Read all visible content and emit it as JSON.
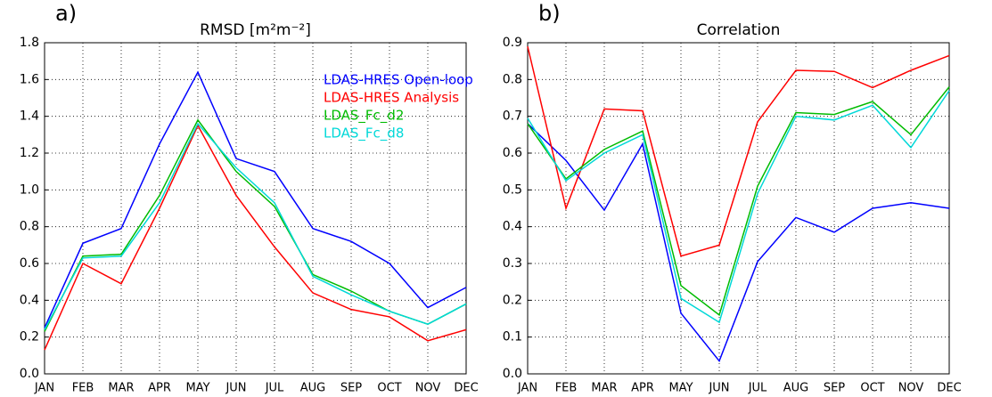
{
  "chart_data": [
    {
      "type": "line",
      "label": "a)",
      "title": "RMSD [m²m⁻²]",
      "categories": [
        "JAN",
        "FEB",
        "MAR",
        "APR",
        "MAY",
        "JUN",
        "JUL",
        "AUG",
        "SEP",
        "OCT",
        "NOV",
        "DEC"
      ],
      "ylim": [
        0,
        1.8
      ],
      "yticks": [
        {
          "value": 0,
          "label": "0.0"
        },
        0.2,
        0.4,
        0.6,
        0.8,
        {
          "value": 1,
          "label": "1.0"
        },
        1.2,
        1.4,
        1.6,
        1.8
      ],
      "grid": true,
      "legend": "upper right",
      "series": [
        {
          "name": "LDAS-HRES Open-loop",
          "color": "#0000ff",
          "values": [
            0.25,
            0.71,
            0.79,
            1.25,
            1.64,
            1.17,
            1.1,
            0.79,
            0.72,
            0.6,
            0.36,
            0.47
          ]
        },
        {
          "name": "LDAS-HRES Analysis",
          "color": "#ff0000",
          "values": [
            0.13,
            0.6,
            0.49,
            0.9,
            1.35,
            0.97,
            0.69,
            0.44,
            0.35,
            0.31,
            0.18,
            0.24
          ]
        },
        {
          "name": "LDAS_Fc_d2",
          "color": "#00bb00",
          "values": [
            0.23,
            0.64,
            0.65,
            0.97,
            1.38,
            1.1,
            0.91,
            0.54,
            0.45,
            0.34,
            0.27,
            0.38
          ]
        },
        {
          "name": "LDAS_Fc_d8",
          "color": "#00d8d8",
          "values": [
            0.24,
            0.63,
            0.64,
            0.93,
            1.36,
            1.12,
            0.93,
            0.53,
            0.43,
            0.34,
            0.27,
            0.38
          ]
        }
      ]
    },
    {
      "type": "line",
      "label": "b)",
      "title": "Correlation",
      "categories": [
        "JAN",
        "FEB",
        "MAR",
        "APR",
        "MAY",
        "JUN",
        "JUL",
        "AUG",
        "SEP",
        "OCT",
        "NOV",
        "DEC"
      ],
      "ylim": [
        0,
        0.9
      ],
      "yticks": [
        {
          "value": 0,
          "label": "0.0"
        },
        0.1,
        0.2,
        0.3,
        0.4,
        0.5,
        0.6,
        0.7,
        0.8,
        0.9
      ],
      "grid": true,
      "series": [
        {
          "color": "#0000ff",
          "values": [
            0.68,
            0.58,
            0.445,
            0.625,
            0.165,
            0.035,
            0.305,
            0.425,
            0.385,
            0.45,
            0.465,
            0.45
          ]
        },
        {
          "color": "#ff0000",
          "values": [
            0.89,
            0.45,
            0.72,
            0.715,
            0.32,
            0.35,
            0.685,
            0.825,
            0.822,
            0.778,
            0.825,
            0.865
          ]
        },
        {
          "color": "#00bb00",
          "values": [
            0.68,
            0.53,
            0.61,
            0.66,
            0.24,
            0.16,
            0.51,
            0.71,
            0.705,
            0.74,
            0.65,
            0.78
          ]
        },
        {
          "color": "#00d8d8",
          "values": [
            0.695,
            0.525,
            0.6,
            0.65,
            0.205,
            0.14,
            0.49,
            0.7,
            0.69,
            0.73,
            0.615,
            0.77
          ]
        }
      ]
    }
  ]
}
